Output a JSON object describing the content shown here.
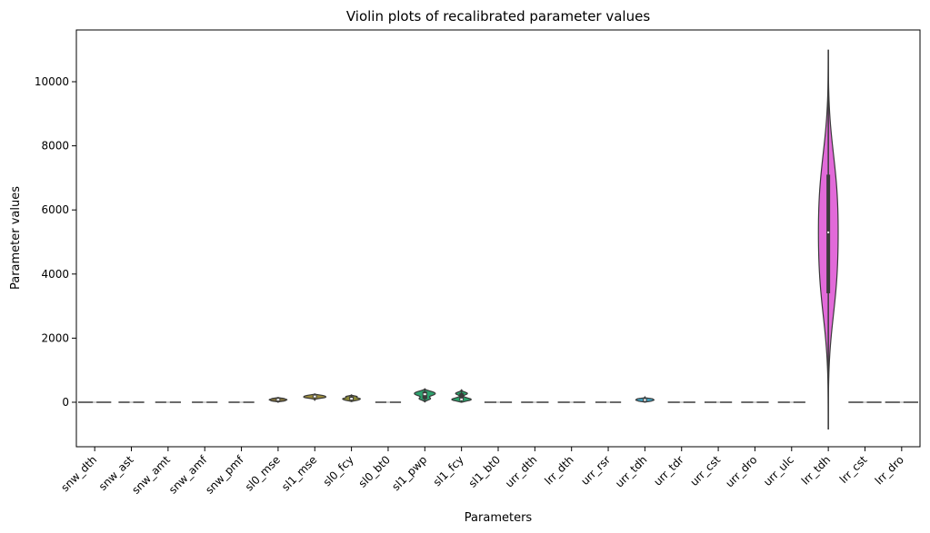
{
  "chart_data": {
    "type": "violin",
    "title": "Violin plots of recalibrated parameter values",
    "xlabel": "Parameters",
    "ylabel": "Parameter values",
    "ylim": [
      -1400,
      11600
    ],
    "yticks": [
      0,
      2000,
      4000,
      6000,
      8000,
      10000
    ],
    "grid": false,
    "legend": "none",
    "categories": [
      "snw_dth",
      "snw_ast",
      "snw_amt",
      "snw_amf",
      "snw_pmf",
      "sl0_mse",
      "sl1_mse",
      "sl0_fcy",
      "sl0_bt0",
      "sl1_pwp",
      "sl1_fcy",
      "sl1_bt0",
      "urr_dth",
      "lrr_dth",
      "urr_rsr",
      "urr_tdh",
      "urr_tdr",
      "urr_cst",
      "urr_dro",
      "urr_ulc",
      "lrr_tdh",
      "lrr_cst",
      "lrr_dro"
    ],
    "colors": [
      "#3f3f8f",
      "#453f92",
      "#4a4a8f",
      "#434c8c",
      "#3e568c",
      "#7e6f3c",
      "#9c8c3a",
      "#8c8a38",
      "#5a8f6e",
      "#2ea26e",
      "#2aa36a",
      "#2ea36e",
      "#31a86e",
      "#36a9a0",
      "#42a9bd",
      "#40a7c7",
      "#7288d6",
      "#a37fde",
      "#cb6ed9",
      "#e163d6",
      "#e26ad9",
      "#cb63b9",
      "#b45e9e"
    ],
    "violins": [
      {
        "min": -2,
        "max": 2,
        "q1": 0,
        "median": 0,
        "q3": 1,
        "max_width_frac": 0.9
      },
      {
        "min": -15,
        "max": 15,
        "q1": -5,
        "median": 0,
        "q3": 5,
        "max_width_frac": 0.7
      },
      {
        "min": -12,
        "max": 12,
        "q1": -4,
        "median": 0,
        "q3": 4,
        "max_width_frac": 0.7
      },
      {
        "min": -12,
        "max": 12,
        "q1": -4,
        "median": 0,
        "q3": 4,
        "max_width_frac": 0.7
      },
      {
        "min": -12,
        "max": 12,
        "q1": -4,
        "median": 0,
        "q3": 4,
        "max_width_frac": 0.7
      },
      {
        "min": 0,
        "max": 150,
        "q1": 40,
        "median": 80,
        "q3": 120,
        "max_width_frac": 0.8
      },
      {
        "min": 50,
        "max": 260,
        "q1": 140,
        "median": 180,
        "q3": 220,
        "max_width_frac": 0.8
      },
      {
        "min": 20,
        "max": 230,
        "q1": 60,
        "median": 110,
        "q3": 180,
        "max_width_frac": 0.8
      },
      {
        "min": -10,
        "max": 10,
        "q1": -3,
        "median": 0,
        "q3": 3,
        "max_width_frac": 0.7
      },
      {
        "min": 10,
        "max": 420,
        "q1": 100,
        "median": 250,
        "q3": 330,
        "max_width_frac": 0.85
      },
      {
        "min": 0,
        "max": 400,
        "q1": 50,
        "median": 90,
        "q3": 280,
        "max_width_frac": 0.8
      },
      {
        "min": -5,
        "max": 5,
        "q1": -2,
        "median": 0,
        "q3": 2,
        "max_width_frac": 0.75
      },
      {
        "min": -5,
        "max": 5,
        "q1": -2,
        "median": 0,
        "q3": 2,
        "max_width_frac": 0.75
      },
      {
        "min": -5,
        "max": 5,
        "q1": -2,
        "median": 0,
        "q3": 2,
        "max_width_frac": 0.75
      },
      {
        "min": -10,
        "max": 10,
        "q1": -3,
        "median": 0,
        "q3": 3,
        "max_width_frac": 0.7
      },
      {
        "min": 0,
        "max": 160,
        "q1": 30,
        "median": 70,
        "q3": 110,
        "max_width_frac": 0.8
      },
      {
        "min": -8,
        "max": 8,
        "q1": -3,
        "median": 0,
        "q3": 3,
        "max_width_frac": 0.75
      },
      {
        "min": -5,
        "max": 5,
        "q1": -2,
        "median": 0,
        "q3": 2,
        "max_width_frac": 0.75
      },
      {
        "min": -8,
        "max": 8,
        "q1": -3,
        "median": 0,
        "q3": 3,
        "max_width_frac": 0.75
      },
      {
        "min": -5,
        "max": 5,
        "q1": -2,
        "median": 0,
        "q3": 2,
        "max_width_frac": 0.75
      },
      {
        "min": -850,
        "max": 11000,
        "q1": 3400,
        "median": 5300,
        "q3": 7100,
        "max_width_frac": 0.6
      },
      {
        "min": -3,
        "max": 3,
        "q1": -1,
        "median": 0,
        "q3": 1,
        "max_width_frac": 0.9
      },
      {
        "min": -3,
        "max": 3,
        "q1": -1,
        "median": 0,
        "q3": 1,
        "max_width_frac": 0.9
      }
    ]
  }
}
